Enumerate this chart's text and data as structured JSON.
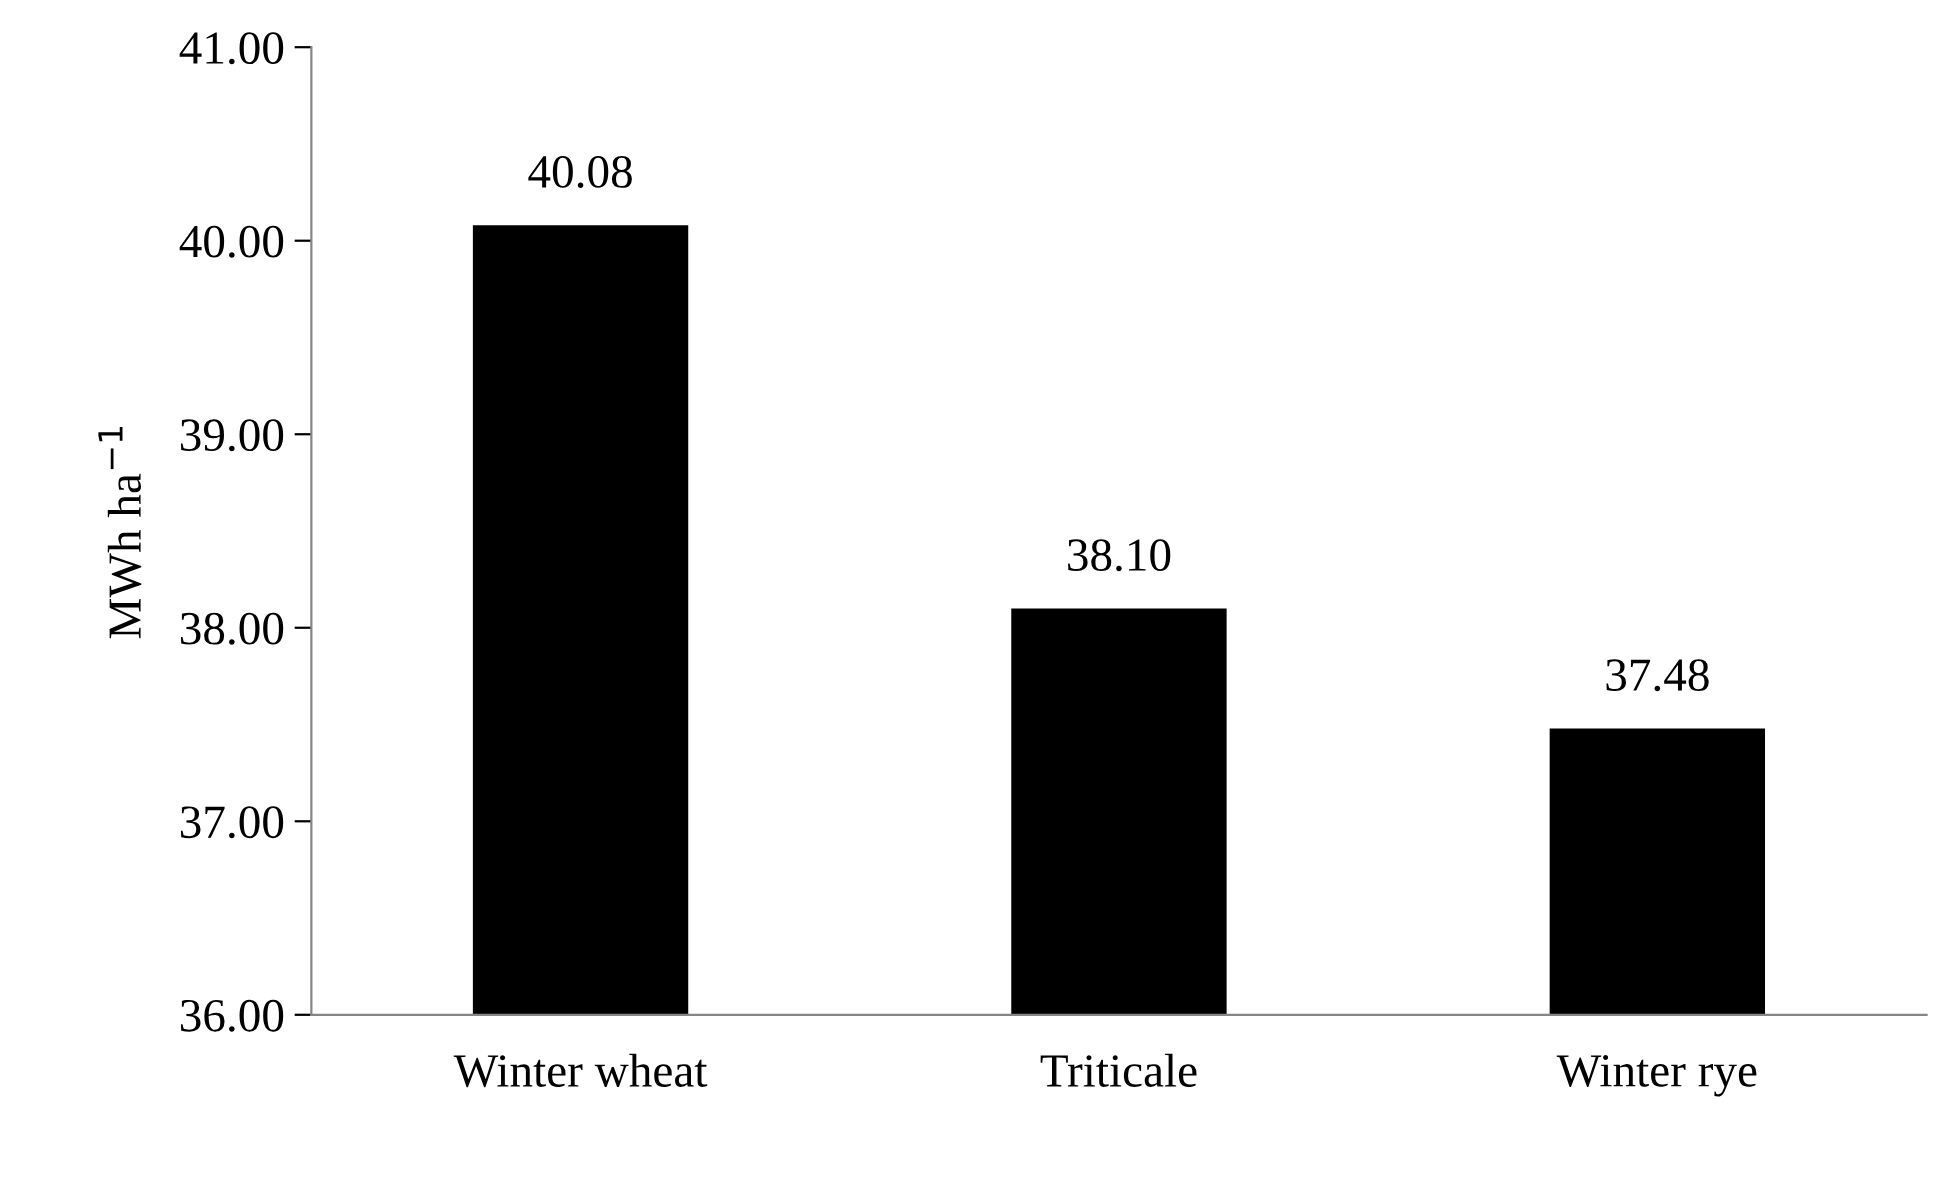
{
  "chart_data": {
    "type": "bar",
    "ylabel": "MWh ha$^{−1}$",
    "categories": [
      "Winter wheat",
      "Triticale",
      "Winter rye"
    ],
    "values": [
      40.08,
      38.1,
      37.48
    ],
    "value_labels": [
      "40.08",
      "38.10",
      "37.48"
    ],
    "color": "#000000",
    "ylim": [
      36,
      41
    ],
    "yticks": [
      {
        "value": 36,
        "label": "36.00"
      },
      {
        "value": 37,
        "label": "37.00"
      },
      {
        "value": 38,
        "label": "38.00"
      },
      {
        "value": 39,
        "label": "39.00"
      },
      {
        "value": 40,
        "label": "40.00"
      },
      {
        "value": 41,
        "label": "41.00"
      }
    ],
    "grid": false,
    "legend": false
  }
}
